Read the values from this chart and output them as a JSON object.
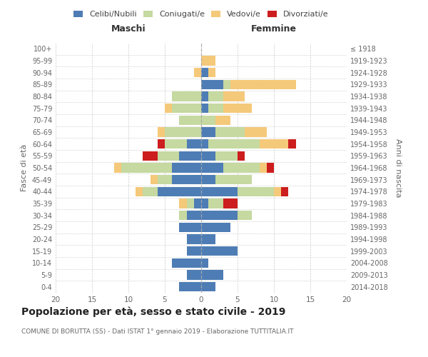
{
  "age_groups": [
    "0-4",
    "5-9",
    "10-14",
    "15-19",
    "20-24",
    "25-29",
    "30-34",
    "35-39",
    "40-44",
    "45-49",
    "50-54",
    "55-59",
    "60-64",
    "65-69",
    "70-74",
    "75-79",
    "80-84",
    "85-89",
    "90-94",
    "95-99",
    "100+"
  ],
  "birth_years": [
    "2014-2018",
    "2009-2013",
    "2004-2008",
    "1999-2003",
    "1994-1998",
    "1989-1993",
    "1984-1988",
    "1979-1983",
    "1974-1978",
    "1969-1973",
    "1964-1968",
    "1959-1963",
    "1954-1958",
    "1949-1953",
    "1944-1948",
    "1939-1943",
    "1934-1938",
    "1929-1933",
    "1924-1928",
    "1919-1923",
    "≤ 1918"
  ],
  "maschi": {
    "celibi": [
      3,
      2,
      4,
      2,
      2,
      3,
      2,
      1,
      6,
      4,
      4,
      3,
      2,
      0,
      0,
      0,
      0,
      0,
      0,
      0,
      0
    ],
    "coniugati": [
      0,
      0,
      0,
      0,
      0,
      0,
      1,
      1,
      2,
      2,
      7,
      3,
      3,
      5,
      3,
      4,
      4,
      0,
      0,
      0,
      0
    ],
    "vedovi": [
      0,
      0,
      0,
      0,
      0,
      0,
      0,
      1,
      1,
      1,
      1,
      0,
      0,
      1,
      0,
      1,
      0,
      0,
      1,
      0,
      0
    ],
    "divorziati": [
      0,
      0,
      0,
      0,
      0,
      0,
      0,
      0,
      0,
      0,
      0,
      2,
      1,
      0,
      0,
      0,
      0,
      0,
      0,
      0,
      0
    ]
  },
  "femmine": {
    "nubili": [
      2,
      3,
      1,
      5,
      2,
      4,
      5,
      1,
      5,
      2,
      3,
      2,
      1,
      2,
      0,
      1,
      1,
      3,
      1,
      0,
      0
    ],
    "coniugate": [
      0,
      0,
      0,
      0,
      0,
      0,
      2,
      2,
      5,
      5,
      5,
      3,
      7,
      4,
      2,
      2,
      2,
      1,
      0,
      0,
      0
    ],
    "vedove": [
      0,
      0,
      0,
      0,
      0,
      0,
      0,
      0,
      1,
      0,
      1,
      0,
      4,
      3,
      2,
      4,
      3,
      9,
      1,
      2,
      0
    ],
    "divorziate": [
      0,
      0,
      0,
      0,
      0,
      0,
      0,
      2,
      1,
      0,
      1,
      1,
      1,
      0,
      0,
      0,
      0,
      0,
      0,
      0,
      0
    ]
  },
  "colors": {
    "celibi_nubili": "#4e7db5",
    "coniugati": "#c5d9a0",
    "vedovi": "#f5c97a",
    "divorziati": "#cc1e1e"
  },
  "title": "Popolazione per età, sesso e stato civile - 2019",
  "subtitle": "COMUNE DI BORUTTA (SS) - Dati ISTAT 1° gennaio 2019 - Elaborazione TUTTITALIA.IT",
  "xlabel_left": "Maschi",
  "xlabel_right": "Femmine",
  "ylabel_left": "Fasce di età",
  "ylabel_right": "Anni di nascita",
  "xlim": 20,
  "background_color": "#ffffff",
  "grid_color": "#cccccc"
}
